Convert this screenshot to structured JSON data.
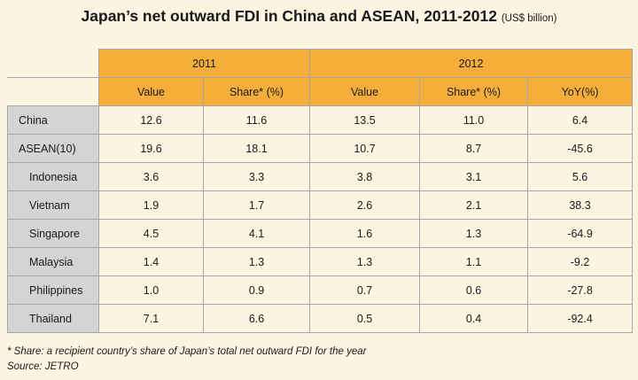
{
  "title": "Japan’s net outward FDI in China and ASEAN, 2011-2012",
  "unit": "(US$ billion)",
  "years": [
    "2011",
    "2012"
  ],
  "columns": [
    "Value",
    "Share* (%)",
    "Value",
    "Share* (%)",
    "YoY(%)"
  ],
  "rows": [
    {
      "label": "China",
      "values": [
        "12.6",
        "11.6",
        "13.5",
        "11.0",
        "6.4"
      ]
    },
    {
      "label": "ASEAN(10)",
      "values": [
        "19.6",
        "18.1",
        "10.7",
        "8.7",
        "-45.6"
      ]
    },
    {
      "label": "Indonesia",
      "values": [
        "3.6",
        "3.3",
        "3.8",
        "3.1",
        "5.6"
      ]
    },
    {
      "label": "Vietnam",
      "values": [
        "1.9",
        "1.7",
        "2.6",
        "2.1",
        "38.3"
      ]
    },
    {
      "label": "Singapore",
      "values": [
        "4.5",
        "4.1",
        "1.6",
        "1.3",
        "-64.9"
      ]
    },
    {
      "label": "Malaysia",
      "values": [
        "1.4",
        "1.3",
        "1.3",
        "1.1",
        "-9.2"
      ]
    },
    {
      "label": "Philippines",
      "values": [
        "1.0",
        "0.9",
        "0.7",
        "0.6",
        "-27.8"
      ]
    },
    {
      "label": "Thailand",
      "values": [
        "7.1",
        "6.6",
        "0.5",
        "0.4",
        "-92.4"
      ]
    }
  ],
  "footnote": "* Share: a recipient country’s share of Japan’s total net outward FDI for the year",
  "source": "Source: JETRO"
}
